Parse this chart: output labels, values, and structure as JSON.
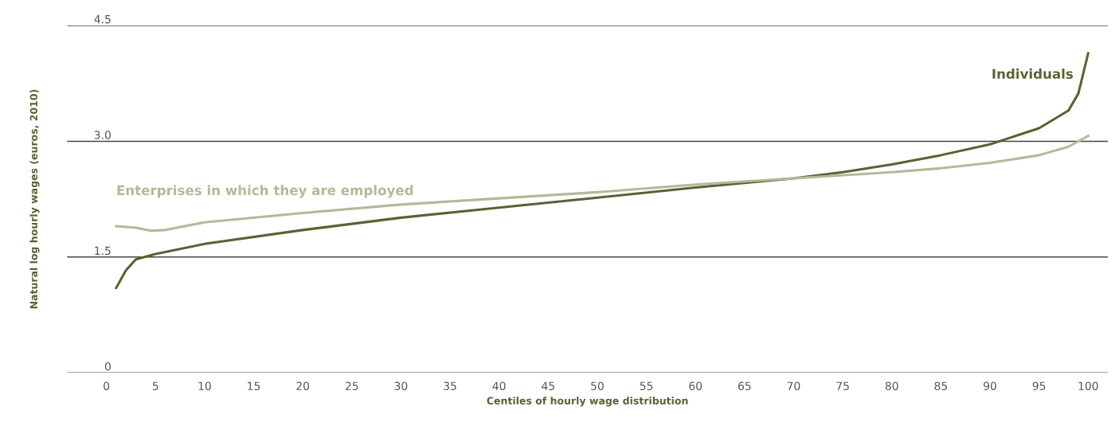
{
  "chart_data": {
    "type": "line",
    "xlabel": "Centiles of hourly wage distribution",
    "ylabel": "Natural log hourly wages (euros, 2010)",
    "xlim": [
      -4,
      102
    ],
    "xticks": [
      0,
      5,
      10,
      15,
      20,
      25,
      30,
      35,
      40,
      45,
      50,
      55,
      60,
      65,
      70,
      75,
      80,
      85,
      90,
      95,
      100
    ],
    "ylim": [
      0,
      4.5
    ],
    "yticks": [
      0,
      1.5,
      {
        "value": 3.0,
        "label": "3.0"
      },
      4.5
    ],
    "grid": "y",
    "legend": false,
    "marker": "none",
    "line_style": "solid",
    "series": [
      {
        "name": "Individuals",
        "color": "#5a6234",
        "x": [
          1,
          2,
          3,
          5,
          10,
          20,
          30,
          40,
          50,
          60,
          70,
          75,
          80,
          85,
          90,
          95,
          98,
          99,
          100
        ],
        "values": [
          1.1,
          1.33,
          1.47,
          1.54,
          1.67,
          1.85,
          2.01,
          2.14,
          2.27,
          2.4,
          2.52,
          2.6,
          2.7,
          2.82,
          2.96,
          3.17,
          3.4,
          3.62,
          4.14
        ]
      },
      {
        "name": "Enterprises in which they are employed",
        "color": "#b5b89a",
        "x": [
          1,
          3,
          4.5,
          6,
          10,
          20,
          30,
          40,
          50,
          60,
          70,
          80,
          85,
          90,
          95,
          98,
          100
        ],
        "values": [
          1.9,
          1.88,
          1.84,
          1.85,
          1.95,
          2.07,
          2.18,
          2.26,
          2.34,
          2.44,
          2.52,
          2.6,
          2.65,
          2.72,
          2.82,
          2.93,
          3.07
        ]
      }
    ]
  }
}
